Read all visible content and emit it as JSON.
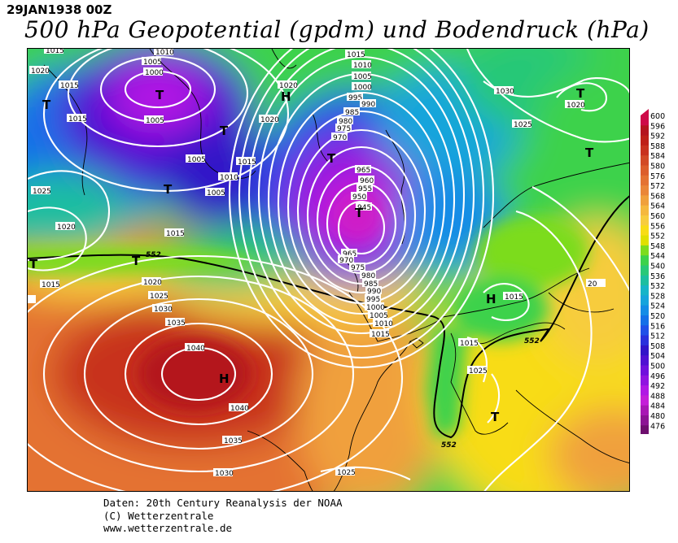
{
  "header": {
    "date": "29JAN1938 00Z",
    "title": "500 hPa Geopotential (gpdm) und Bodendruck (hPa)"
  },
  "map": {
    "isobar_labels": [
      "1015",
      "1020",
      "1015",
      "1010",
      "1005",
      "1000",
      "1005",
      "1015",
      "1020",
      "1020",
      "1015",
      "1010",
      "1005",
      "1005",
      "1015",
      "1010",
      "1005",
      "1000",
      "995",
      "990",
      "985",
      "980",
      "975",
      "970",
      "965",
      "960",
      "955",
      "950",
      "945",
      "1030",
      "1020",
      "1025",
      "1025",
      "1020",
      "1015",
      "965",
      "970",
      "975",
      "980",
      "985",
      "990",
      "995",
      "1000",
      "1005",
      "1010",
      "1015",
      "1015",
      "1020",
      "1025",
      "1030",
      "1035",
      "1040",
      "1040",
      "1035",
      "1030",
      "1025",
      "1015",
      "1015",
      "1025",
      "20"
    ],
    "pressure_centers": [
      "T",
      "T",
      "T",
      "T",
      "T",
      "T",
      "H",
      "T",
      "T",
      "T",
      "T",
      "H",
      "H",
      "T"
    ],
    "heights_contour_labels": [
      "552",
      "552",
      "552"
    ],
    "coastline_color": "#000000",
    "isobar_color": "#ffffff"
  },
  "colorbar": {
    "levels": [
      "600",
      "596",
      "592",
      "588",
      "584",
      "580",
      "576",
      "572",
      "568",
      "564",
      "560",
      "556",
      "552",
      "548",
      "544",
      "540",
      "536",
      "532",
      "528",
      "524",
      "520",
      "516",
      "512",
      "508",
      "504",
      "500",
      "496",
      "492",
      "488",
      "484",
      "480",
      "476"
    ],
    "colors": [
      "#ce0a48",
      "#b4141e",
      "#be2018",
      "#c8321e",
      "#d24a26",
      "#dc5e2c",
      "#e47232",
      "#ea8638",
      "#f0a03c",
      "#f5b83e",
      "#f7cc3e",
      "#f8dc16",
      "#e0e000",
      "#7cdc1e",
      "#3cd24c",
      "#28c878",
      "#1cbea0",
      "#16b4c8",
      "#16a4dc",
      "#148ce6",
      "#1470e8",
      "#2050e8",
      "#2a30dc",
      "#3214c8",
      "#5010d2",
      "#7010dc",
      "#9014e0",
      "#b018e4",
      "#c41ed8",
      "#a818b4",
      "#8c1494",
      "#6e0e6e"
    ]
  },
  "credits": {
    "line1": "Daten: 20th Century Reanalysis der NOAA",
    "line2": "(C) Wetterzentrale",
    "line3": "www.wetterzentrale.de"
  }
}
